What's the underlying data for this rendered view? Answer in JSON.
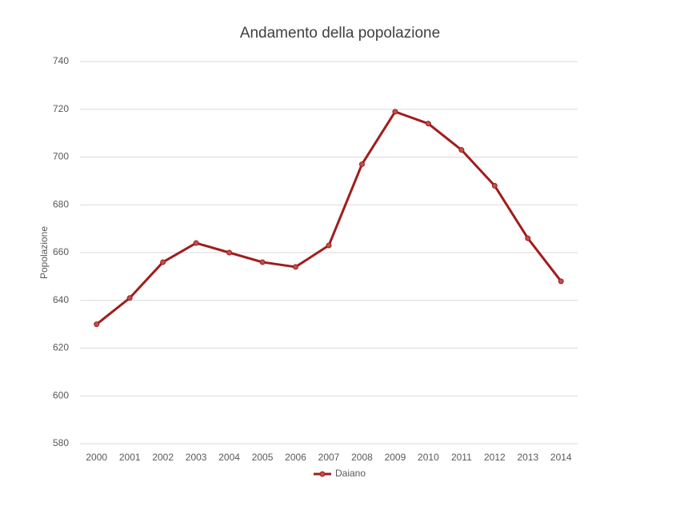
{
  "chart_data": {
    "type": "line",
    "title": "Andamento della popolazione",
    "y_label": "Popolazione",
    "categories": [
      "2000",
      "2001",
      "2002",
      "2003",
      "2004",
      "2005",
      "2006",
      "2007",
      "2008",
      "2009",
      "2010",
      "2011",
      "2012",
      "2013",
      "2014"
    ],
    "series": [
      {
        "name": "Daiano",
        "color": "#a01c1c",
        "values": [
          630,
          641,
          656,
          664,
          660,
          656,
          654,
          663,
          697,
          719,
          714,
          703,
          688,
          666,
          648
        ]
      }
    ],
    "ylim": [
      580,
      740
    ],
    "yticks": [
      580,
      600,
      620,
      640,
      660,
      680,
      700,
      720,
      740
    ],
    "grid": true,
    "legend": "bottom"
  }
}
